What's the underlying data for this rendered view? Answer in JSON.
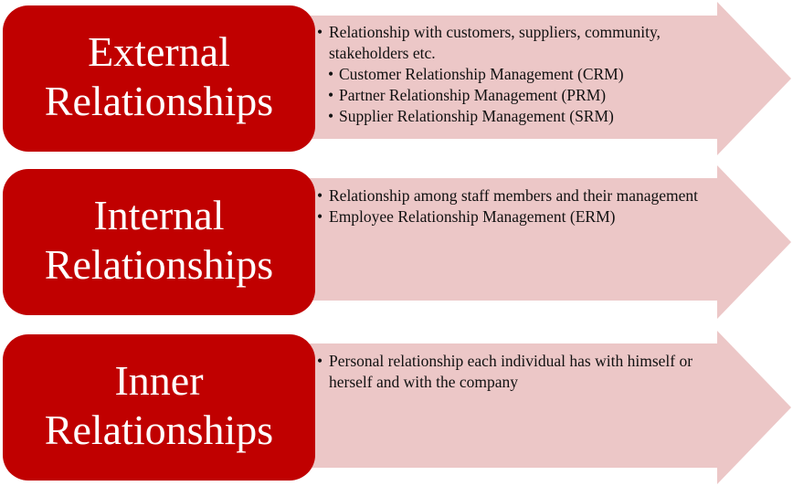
{
  "colors": {
    "box_fill": "#c00000",
    "box_text": "#ffffff",
    "arrow_fill": "#ecc7c7"
  },
  "rows": [
    {
      "title_line1": "External",
      "title_line2": "Relationships",
      "bullets": [
        "Relationship with customers, suppliers, community, stakeholders etc.",
        "Customer Relationship Management (CRM)",
        "Partner Relationship Management (PRM)",
        "Supplier Relationship Management (SRM)"
      ]
    },
    {
      "title_line1": "Internal",
      "title_line2": "Relationships",
      "bullets": [
        "Relationship among staff members and their management",
        "Employee Relationship Management (ERM)"
      ]
    },
    {
      "title_line1": "Inner",
      "title_line2": "Relationships",
      "bullets": [
        "Personal relationship each individual has with himself or herself and with the company"
      ]
    }
  ]
}
